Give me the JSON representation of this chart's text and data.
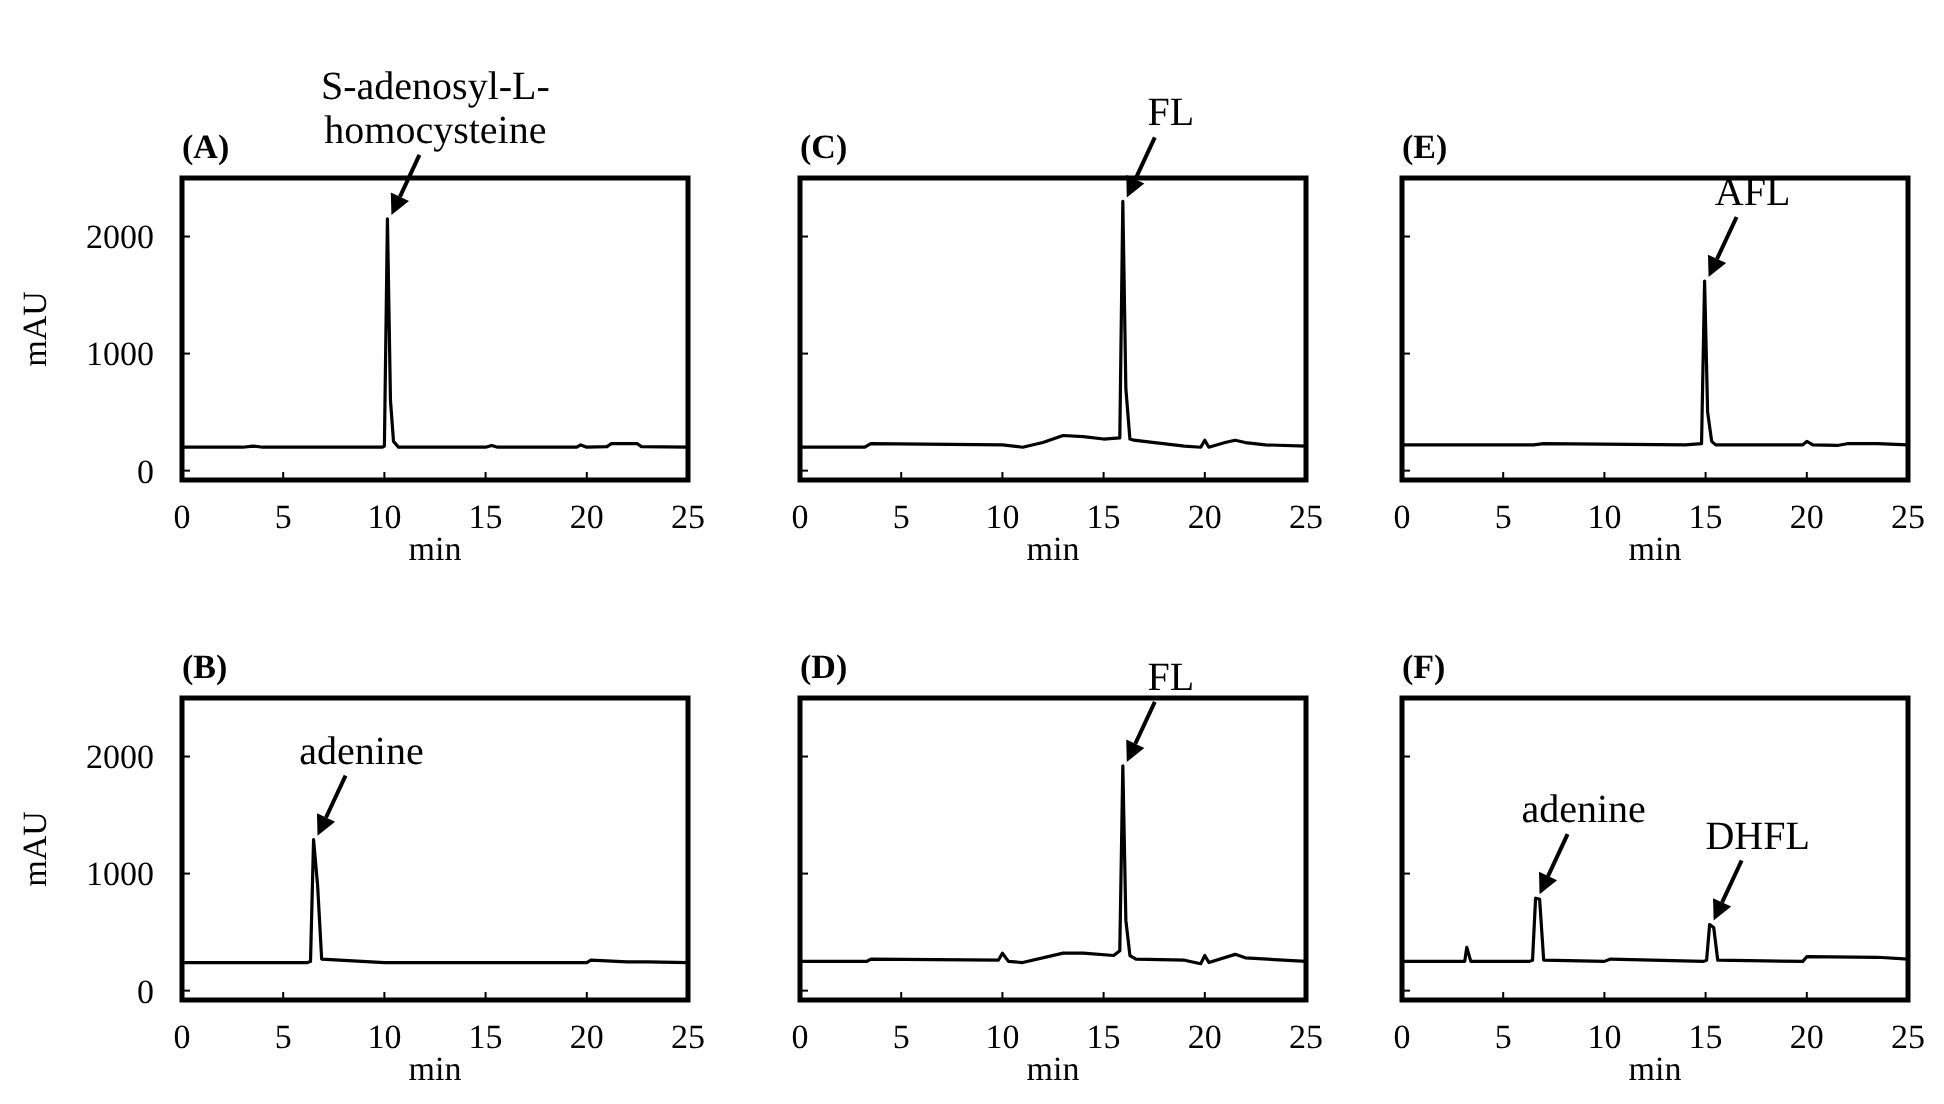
{
  "chart_data": [
    {
      "type": "line",
      "title": "(A)",
      "ylabel": "mAU",
      "xlabel": "min",
      "xlim": [
        0,
        25
      ],
      "xticks": [
        0,
        5,
        10,
        15,
        20,
        25
      ],
      "ylim": [
        -80,
        2500
      ],
      "yticks": [
        0,
        1000,
        2000
      ],
      "x": [
        0,
        3,
        3.5,
        4,
        9.9,
        10.0,
        10.15,
        10.3,
        10.45,
        10.7,
        15,
        15.3,
        15.6,
        19.5,
        19.7,
        20,
        21,
        21.2,
        22.5,
        22.7,
        25
      ],
      "series": [
        {
          "color": "#000000",
          "values": [
            200,
            200,
            210,
            200,
            200,
            210,
            2150,
            600,
            250,
            200,
            200,
            215,
            200,
            200,
            220,
            200,
            205,
            230,
            230,
            205,
            200
          ]
        }
      ],
      "annotations": [
        {
          "text": "S-adenosyl-L-homocysteine",
          "x": 10.15,
          "y": 2150
        }
      ]
    },
    {
      "type": "line",
      "title": "(C)",
      "xlabel": "min",
      "xlim": [
        0,
        25
      ],
      "xticks": [
        0,
        5,
        10,
        15,
        20,
        25
      ],
      "ylim": [
        -80,
        2500
      ],
      "yticks": [
        0,
        1000,
        2000
      ],
      "tick_labels": "x",
      "x": [
        0,
        3.2,
        3.5,
        10,
        11,
        12,
        13,
        14,
        15,
        15.8,
        15.95,
        16.1,
        16.3,
        16.5,
        17,
        19,
        19.8,
        20,
        20.2,
        21,
        21.5,
        22,
        23,
        25
      ],
      "series": [
        {
          "color": "#000000",
          "values": [
            200,
            200,
            230,
            220,
            200,
            240,
            300,
            290,
            270,
            280,
            2300,
            700,
            270,
            260,
            250,
            210,
            200,
            260,
            200,
            240,
            260,
            240,
            220,
            210
          ]
        }
      ],
      "annotations": [
        {
          "text": "FL",
          "x": 15.95,
          "y": 2300
        }
      ]
    },
    {
      "type": "line",
      "title": "(E)",
      "xlabel": "min",
      "xlim": [
        0,
        25
      ],
      "xticks": [
        0,
        5,
        10,
        15,
        20,
        25
      ],
      "ylim": [
        -80,
        2500
      ],
      "yticks": [
        0,
        1000,
        2000
      ],
      "tick_labels": "x",
      "x": [
        0,
        6.5,
        7,
        14,
        14.8,
        14.95,
        15.1,
        15.3,
        15.5,
        19.8,
        20,
        20.3,
        21.5,
        22,
        23.5,
        25
      ],
      "series": [
        {
          "color": "#000000",
          "values": [
            220,
            220,
            230,
            220,
            230,
            1620,
            500,
            250,
            220,
            220,
            250,
            220,
            215,
            230,
            230,
            220
          ]
        }
      ],
      "annotations": [
        {
          "text": "AFL",
          "x": 14.95,
          "y": 1620
        }
      ]
    },
    {
      "type": "line",
      "title": "(B)",
      "ylabel": "mAU",
      "xlabel": "min",
      "xlim": [
        0,
        25
      ],
      "xticks": [
        0,
        5,
        10,
        15,
        20,
        25
      ],
      "ylim": [
        -80,
        2500
      ],
      "yticks": [
        0,
        1000,
        2000
      ],
      "x": [
        0,
        6.2,
        6.35,
        6.5,
        6.7,
        6.9,
        10,
        20,
        20.2,
        22,
        23,
        25
      ],
      "series": [
        {
          "color": "#000000",
          "values": [
            240,
            240,
            250,
            1290,
            900,
            270,
            240,
            240,
            260,
            245,
            245,
            240
          ]
        }
      ],
      "annotations": [
        {
          "text": "adenine",
          "x": 6.5,
          "y": 1290
        }
      ]
    },
    {
      "type": "line",
      "title": "(D)",
      "xlabel": "min",
      "xlim": [
        0,
        25
      ],
      "xticks": [
        0,
        5,
        10,
        15,
        20,
        25
      ],
      "ylim": [
        -80,
        2500
      ],
      "yticks": [
        0,
        1000,
        2000
      ],
      "tick_labels": "x",
      "x": [
        0,
        3.3,
        3.5,
        9.8,
        10,
        10.3,
        11,
        13,
        14,
        15.5,
        15.8,
        15.95,
        16.1,
        16.3,
        16.6,
        19,
        19.8,
        20,
        20.2,
        21.5,
        22,
        25
      ],
      "series": [
        {
          "color": "#000000",
          "values": [
            250,
            250,
            270,
            260,
            320,
            250,
            240,
            320,
            320,
            300,
            340,
            1920,
            600,
            300,
            270,
            260,
            230,
            300,
            240,
            310,
            280,
            250
          ]
        }
      ],
      "annotations": [
        {
          "text": "FL",
          "x": 15.95,
          "y": 1920
        }
      ]
    },
    {
      "type": "line",
      "title": "(F)",
      "xlabel": "min",
      "xlim": [
        0,
        25
      ],
      "xticks": [
        0,
        5,
        10,
        15,
        20,
        25
      ],
      "ylim": [
        -80,
        2500
      ],
      "yticks": [
        0,
        1000,
        2000
      ],
      "tick_labels": "x",
      "x": [
        0,
        3.1,
        3.2,
        3.4,
        6.3,
        6.45,
        6.6,
        6.8,
        7,
        10,
        10.3,
        14.9,
        15.05,
        15.2,
        15.4,
        15.6,
        19.8,
        20,
        23.5,
        25
      ],
      "series": [
        {
          "color": "#000000",
          "values": [
            250,
            250,
            370,
            250,
            250,
            260,
            790,
            780,
            260,
            250,
            270,
            250,
            260,
            565,
            540,
            260,
            250,
            290,
            285,
            270
          ]
        }
      ],
      "annotations": [
        {
          "text": "adenine",
          "x": 6.6,
          "y": 790
        },
        {
          "text": "DHFL",
          "x": 15.2,
          "y": 565
        }
      ]
    }
  ]
}
